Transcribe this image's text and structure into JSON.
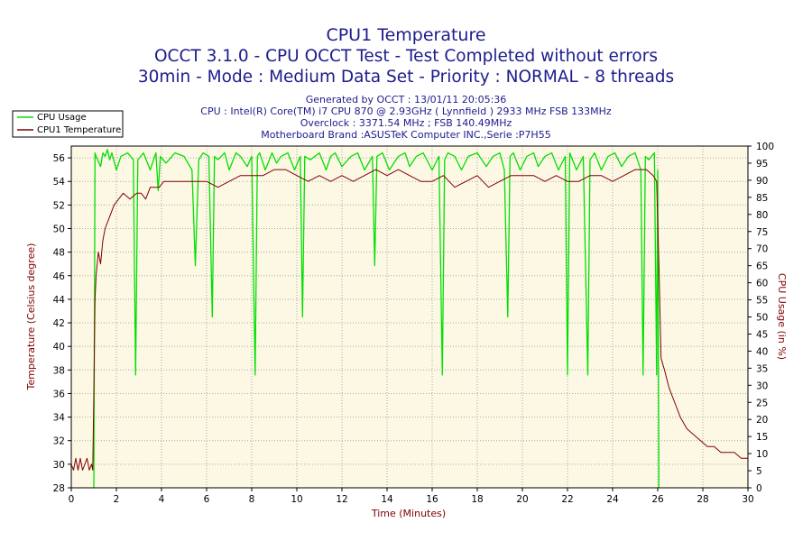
{
  "chart_data": {
    "type": "line",
    "title": "CPU1 Temperature",
    "subtitle1": "OCCT 3.1.0 - CPU OCCT Test - Test Completed without errors",
    "subtitle2": "30min - Mode : Medium Data Set - Priority : NORMAL - 8 threads",
    "info": [
      "Generated by OCCT : 13/01/11 20:05:36",
      "CPU : Intel(R) Core(TM) i7 CPU 870 @ 2.93GHz ( Lynnfield ) 2933 MHz FSB 133MHz",
      "Overclock : 3371.54 MHz ; FSB 140.49MHz",
      "Motherboard Brand :ASUSTeK Computer INC.,Serie :P7H55"
    ],
    "xlabel": "Time (Minutes)",
    "ylabel": "Temperature (Celsius degree)",
    "y2label": "CPU Usage (in %)",
    "xlim": [
      0,
      30
    ],
    "ylim": [
      28,
      57
    ],
    "y2lim": [
      0,
      100
    ],
    "xticks": [
      0,
      2,
      4,
      6,
      8,
      10,
      12,
      14,
      16,
      18,
      20,
      22,
      24,
      26,
      28,
      30
    ],
    "yticks": [
      28,
      30,
      32,
      34,
      36,
      38,
      40,
      42,
      44,
      46,
      48,
      50,
      52,
      54,
      56
    ],
    "y2ticks": [
      0,
      5,
      10,
      15,
      20,
      25,
      30,
      35,
      40,
      45,
      50,
      55,
      60,
      65,
      70,
      75,
      80,
      85,
      90,
      95,
      100
    ],
    "grid": true,
    "legend_position": "top-left",
    "colors": {
      "background": "#fdf8e4",
      "grid": "#a8a8a8",
      "usage": "#00e000",
      "temperature": "#800000",
      "title": "#1c1c8c",
      "axis_label": "#800000"
    },
    "series": [
      {
        "name": "CPU Usage",
        "axis": "right",
        "x": [
          0.95,
          1.0,
          1.03,
          1.05,
          1.1,
          1.3,
          1.4,
          1.5,
          1.6,
          1.7,
          1.8,
          2.0,
          2.2,
          2.5,
          2.75,
          2.85,
          2.95,
          3.2,
          3.5,
          3.75,
          3.85,
          3.95,
          4.2,
          4.6,
          5.0,
          5.35,
          5.5,
          5.65,
          5.85,
          6.1,
          6.25,
          6.35,
          6.5,
          6.8,
          7.0,
          7.3,
          7.5,
          7.8,
          8.0,
          8.15,
          8.25,
          8.35,
          8.6,
          8.9,
          9.1,
          9.3,
          9.6,
          9.9,
          10.15,
          10.25,
          10.35,
          10.6,
          11.0,
          11.3,
          11.5,
          11.7,
          12.0,
          12.4,
          12.7,
          13.0,
          13.35,
          13.45,
          13.55,
          13.8,
          14.1,
          14.5,
          14.8,
          15.0,
          15.3,
          15.6,
          16.0,
          16.3,
          16.45,
          16.55,
          16.7,
          17.0,
          17.3,
          17.6,
          18.0,
          18.4,
          18.7,
          19.0,
          19.2,
          19.35,
          19.45,
          19.6,
          19.9,
          20.2,
          20.5,
          20.7,
          21.0,
          21.3,
          21.6,
          21.9,
          22.0,
          22.1,
          22.4,
          22.7,
          22.9,
          23.0,
          23.2,
          23.5,
          23.8,
          24.1,
          24.4,
          24.7,
          25.0,
          25.25,
          25.35,
          25.45,
          25.6,
          25.85,
          25.95,
          26.0,
          26.05
        ],
        "values": [
          0,
          0,
          60,
          98,
          97,
          94,
          98,
          97,
          99,
          96,
          98,
          93,
          97,
          98,
          96,
          33,
          96,
          98,
          93,
          98,
          87,
          97,
          95,
          98,
          97,
          93,
          65,
          96,
          98,
          97,
          50,
          97,
          96,
          98,
          93,
          98,
          97,
          94,
          97,
          33,
          97,
          98,
          93,
          98,
          95,
          97,
          98,
          93,
          97,
          50,
          97,
          96,
          98,
          93,
          97,
          98,
          94,
          97,
          98,
          93,
          97,
          65,
          97,
          98,
          93,
          97,
          98,
          94,
          97,
          98,
          93,
          97,
          33,
          96,
          98,
          97,
          93,
          97,
          98,
          94,
          97,
          98,
          93,
          50,
          97,
          98,
          93,
          97,
          98,
          94,
          97,
          98,
          93,
          97,
          33,
          98,
          93,
          97,
          33,
          96,
          98,
          93,
          97,
          98,
          94,
          97,
          98,
          93,
          33,
          97,
          96,
          98,
          33,
          93,
          0
        ]
      },
      {
        "name": "CPU1 Temperature",
        "axis": "left",
        "x": [
          0.0,
          0.1,
          0.2,
          0.3,
          0.4,
          0.5,
          0.6,
          0.7,
          0.8,
          0.9,
          0.95,
          1.0,
          1.05,
          1.1,
          1.2,
          1.3,
          1.4,
          1.5,
          1.7,
          1.9,
          2.1,
          2.3,
          2.6,
          2.9,
          3.1,
          3.3,
          3.5,
          3.7,
          3.9,
          4.1,
          4.5,
          5.0,
          5.5,
          6.0,
          6.5,
          7.0,
          7.5,
          8.0,
          8.5,
          9.0,
          9.5,
          10.0,
          10.5,
          11.0,
          11.5,
          12.0,
          12.5,
          13.0,
          13.5,
          14.0,
          14.5,
          15.0,
          15.5,
          16.0,
          16.5,
          17.0,
          17.5,
          18.0,
          18.5,
          19.0,
          19.5,
          20.0,
          20.5,
          21.0,
          21.5,
          22.0,
          22.5,
          23.0,
          23.5,
          24.0,
          24.5,
          25.0,
          25.5,
          25.8,
          25.95,
          26.05,
          26.15,
          26.3,
          26.5,
          26.8,
          27.0,
          27.3,
          27.6,
          27.9,
          28.2,
          28.5,
          28.8,
          29.1,
          29.4,
          29.7,
          30.0
        ],
        "values": [
          30.0,
          29.5,
          30.5,
          29.5,
          30.5,
          29.5,
          30.0,
          30.5,
          29.5,
          30.0,
          29.5,
          36.0,
          44.0,
          46.0,
          48.0,
          47.0,
          49.0,
          50.0,
          51.0,
          52.0,
          52.5,
          53.0,
          52.5,
          53.0,
          53.0,
          52.5,
          53.5,
          53.5,
          53.5,
          54.0,
          54.0,
          54.0,
          54.0,
          54.0,
          53.5,
          54.0,
          54.5,
          54.5,
          54.5,
          55.0,
          55.0,
          54.5,
          54.0,
          54.5,
          54.0,
          54.5,
          54.0,
          54.5,
          55.0,
          54.5,
          55.0,
          54.5,
          54.0,
          54.0,
          54.5,
          53.5,
          54.0,
          54.5,
          53.5,
          54.0,
          54.5,
          54.5,
          54.5,
          54.0,
          54.5,
          54.0,
          54.0,
          54.5,
          54.5,
          54.0,
          54.5,
          55.0,
          55.0,
          54.5,
          54.0,
          47.0,
          39.0,
          38.0,
          36.5,
          35.0,
          34.0,
          33.0,
          32.5,
          32.0,
          31.5,
          31.5,
          31.0,
          31.0,
          31.0,
          30.5,
          30.5
        ]
      }
    ]
  }
}
